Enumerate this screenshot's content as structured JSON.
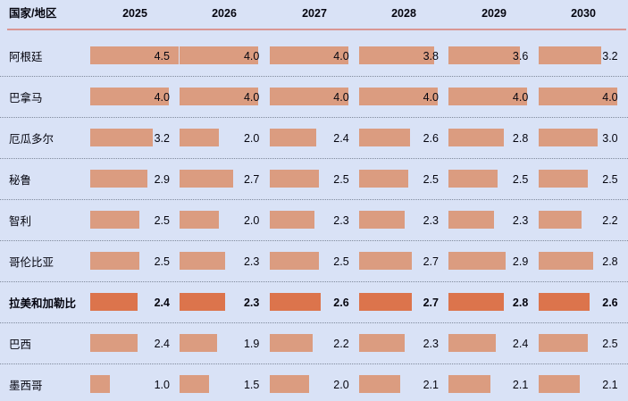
{
  "header": {
    "country_label": "国家/地区",
    "years": [
      "2025",
      "2026",
      "2027",
      "2028",
      "2029",
      "2030"
    ]
  },
  "chart_data": {
    "type": "bar",
    "orientation": "horizontal-data-bars-in-table",
    "title": "",
    "categories": [
      "2025",
      "2026",
      "2027",
      "2028",
      "2029",
      "2030"
    ],
    "value_range": [
      0,
      4.5
    ],
    "value_format": "one-decimal",
    "series": [
      {
        "name": "阿根廷",
        "values": [
          4.5,
          4.0,
          4.0,
          3.8,
          3.6,
          3.2
        ],
        "emphasis": false
      },
      {
        "name": "巴拿马",
        "values": [
          4.0,
          4.0,
          4.0,
          4.0,
          4.0,
          4.0
        ],
        "emphasis": false
      },
      {
        "name": "厄瓜多尔",
        "values": [
          3.2,
          2.0,
          2.4,
          2.6,
          2.8,
          3.0
        ],
        "emphasis": false
      },
      {
        "name": "秘鲁",
        "values": [
          2.9,
          2.7,
          2.5,
          2.5,
          2.5,
          2.5
        ],
        "emphasis": false
      },
      {
        "name": "智利",
        "values": [
          2.5,
          2.0,
          2.3,
          2.3,
          2.3,
          2.2
        ],
        "emphasis": false
      },
      {
        "name": "哥伦比亚",
        "values": [
          2.5,
          2.3,
          2.5,
          2.7,
          2.9,
          2.8
        ],
        "emphasis": false
      },
      {
        "name": "拉美和加勒比",
        "values": [
          2.4,
          2.3,
          2.6,
          2.7,
          2.8,
          2.6
        ],
        "emphasis": true
      },
      {
        "name": "巴西",
        "values": [
          2.4,
          1.9,
          2.2,
          2.3,
          2.4,
          2.5
        ],
        "emphasis": false
      },
      {
        "name": "墨西哥",
        "values": [
          1.0,
          1.5,
          2.0,
          2.1,
          2.1,
          2.1
        ],
        "emphasis": false
      }
    ]
  },
  "colors": {
    "background": "#d9e2f6",
    "bar": "#db9c80",
    "bar_emphasis": "#dc744c",
    "header_rule": "#d99694",
    "row_divider": "#808a9c",
    "text": "#05050f"
  }
}
